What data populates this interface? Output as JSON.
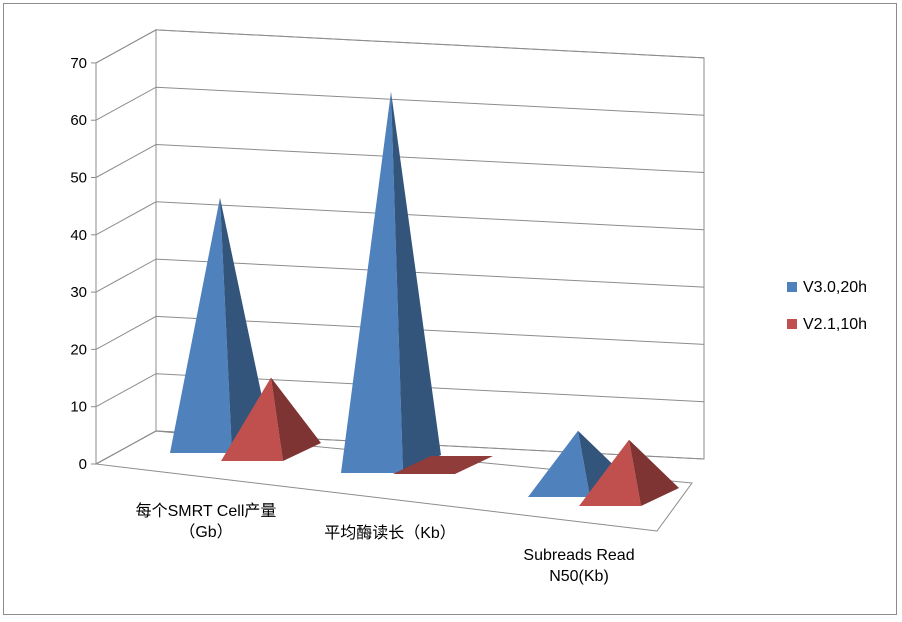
{
  "chart_data": {
    "type": "bar",
    "style": "3d-pyramid",
    "title": "",
    "xlabel": "",
    "ylabel": "",
    "ylim": [
      0,
      70
    ],
    "yticks": [
      0,
      10,
      20,
      30,
      40,
      50,
      60,
      70
    ],
    "grid": true,
    "legend_position": "right",
    "categories": [
      "每个SMRT Cell产量（Gb）",
      "平均酶读长（Kb）",
      "Subreads Read N50(Kb)"
    ],
    "category_lines": [
      [
        "每个SMRT Cell产量",
        "（Gb）"
      ],
      [
        "平均酶读长（Kb）"
      ],
      [
        "Subreads Read",
        "N50(Kb)"
      ]
    ],
    "series": [
      {
        "name": "V3.0,20h",
        "values": [
          43,
          65,
          10
        ],
        "color": "#4F81BD"
      },
      {
        "name": "V2.1,10h",
        "values": [
          13,
          0.3,
          10
        ],
        "color": "#C0504D"
      }
    ]
  }
}
